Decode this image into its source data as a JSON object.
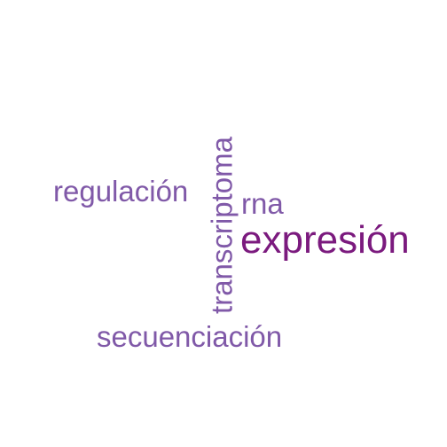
{
  "words": [
    {
      "text": "expresión",
      "color": "#7b1a7e"
    },
    {
      "text": "regulación",
      "color": "#8059a8"
    },
    {
      "text": "rna",
      "color": "#8059a8"
    },
    {
      "text": "transcriptoma",
      "color": "#8059a8"
    },
    {
      "text": "secuenciación",
      "color": "#8059a8"
    }
  ]
}
